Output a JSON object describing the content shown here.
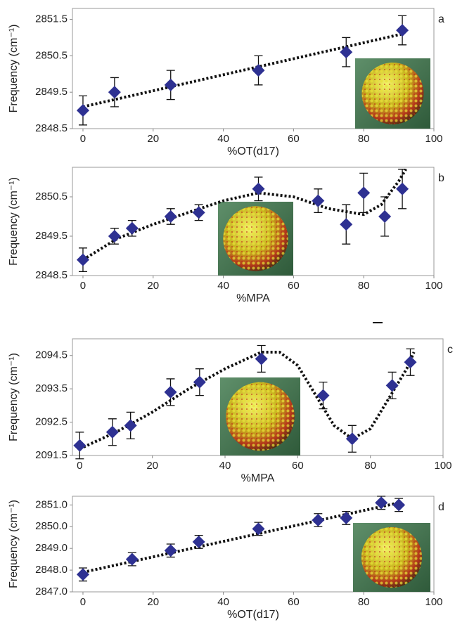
{
  "chart_data": [
    {
      "type": "scatter",
      "panel_label": "a",
      "x_label": "%OT(d17)",
      "y_label": "Frequency (cm⁻¹)",
      "color": "#2e3192",
      "x": [
        0,
        9,
        25,
        50,
        75,
        91
      ],
      "values": [
        2849.0,
        2849.5,
        2849.7,
        2850.1,
        2850.6,
        2851.2
      ],
      "errors": [
        0.4,
        0.4,
        0.4,
        0.4,
        0.4,
        0.4
      ],
      "fit": {
        "x": [
          0,
          91
        ],
        "values": [
          2849.1,
          2851.1
        ]
      },
      "xlim": [
        -3,
        100
      ],
      "xticks": [
        0,
        20,
        40,
        60,
        80,
        100
      ],
      "ylim": [
        2848.5,
        2851.8
      ],
      "yticks": [
        2848.5,
        2849.5,
        2850.5,
        2851.5
      ]
    },
    {
      "type": "scatter",
      "panel_label": "b",
      "x_label": "%MPA",
      "y_label": "Frequency (cm⁻¹)",
      "color": "#2e3192",
      "x": [
        0,
        9,
        14,
        25,
        33,
        50,
        67,
        75,
        80,
        86,
        91
      ],
      "values": [
        2848.9,
        2849.5,
        2849.7,
        2850.0,
        2850.1,
        2850.7,
        2850.4,
        2849.8,
        2850.6,
        2850.0,
        2850.7
      ],
      "errors": [
        0.3,
        0.2,
        0.2,
        0.2,
        0.2,
        0.3,
        0.3,
        0.5,
        0.5,
        0.5,
        0.5
      ],
      "fit": {
        "x": [
          0,
          10,
          20,
          30,
          40,
          50,
          60,
          70,
          80,
          85,
          90,
          92
        ],
        "values": [
          2848.9,
          2849.45,
          2849.8,
          2850.1,
          2850.4,
          2850.6,
          2850.5,
          2850.2,
          2850.05,
          2850.3,
          2850.9,
          2851.2
        ]
      },
      "xlim": [
        -3,
        100
      ],
      "xticks": [
        0,
        20,
        40,
        60,
        80,
        100
      ],
      "ylim": [
        2848.5,
        2851.25
      ],
      "yticks": [
        2848.5,
        2849.5,
        2850.5
      ]
    },
    {
      "type": "scatter",
      "panel_label": "c",
      "x_label": "%MPA",
      "y_label": "Frequency (cm⁻¹)",
      "color": "#2e3192",
      "x": [
        0,
        9,
        14,
        25,
        33,
        50,
        67,
        75,
        86,
        91
      ],
      "values": [
        2091.8,
        2092.2,
        2092.4,
        2093.4,
        2093.7,
        2094.4,
        2093.3,
        2092.0,
        2093.6,
        2094.3
      ],
      "errors": [
        0.4,
        0.4,
        0.4,
        0.4,
        0.4,
        0.4,
        0.4,
        0.4,
        0.4,
        0.4
      ],
      "fit": {
        "x": [
          0,
          10,
          20,
          30,
          40,
          50,
          55,
          60,
          65,
          70,
          75,
          80,
          85,
          90,
          92
        ],
        "values": [
          2091.7,
          2092.2,
          2092.8,
          2093.5,
          2094.1,
          2094.6,
          2094.6,
          2094.2,
          2093.3,
          2092.4,
          2092.0,
          2092.3,
          2093.2,
          2094.1,
          2094.6
        ]
      },
      "xlim": [
        -2,
        100
      ],
      "xticks": [
        0,
        20,
        40,
        60,
        80,
        100
      ],
      "ylim": [
        2091.5,
        2095.0
      ],
      "yticks": [
        2091.5,
        2092.5,
        2093.5,
        2094.5
      ]
    },
    {
      "type": "scatter",
      "panel_label": "d",
      "x_label": "%OT(d17)",
      "y_label": "Frequency (cm⁻¹)",
      "color": "#2e3192",
      "x": [
        0,
        14,
        25,
        33,
        50,
        67,
        75,
        85,
        90
      ],
      "values": [
        2847.8,
        2848.5,
        2848.9,
        2849.3,
        2849.9,
        2850.3,
        2850.4,
        2851.1,
        2851.0
      ],
      "errors": [
        0.3,
        0.3,
        0.3,
        0.3,
        0.3,
        0.3,
        0.3,
        0.3,
        0.3
      ],
      "fit": {
        "x": [
          0,
          90
        ],
        "values": [
          2847.9,
          2851.1
        ]
      },
      "xlim": [
        -3,
        100
      ],
      "xticks": [
        0,
        20,
        40,
        60,
        80,
        100
      ],
      "ylim": [
        2847.0,
        2851.4
      ],
      "yticks": [
        {
          "value": 2847,
          "label": "2847.0"
        },
        {
          "value": 2848,
          "label": "2848.0"
        },
        {
          "value": 2849,
          "label": "2849.0"
        },
        {
          "value": 2850,
          "label": "2850.0"
        },
        {
          "value": 2851,
          "label": "2851.0"
        }
      ]
    }
  ]
}
